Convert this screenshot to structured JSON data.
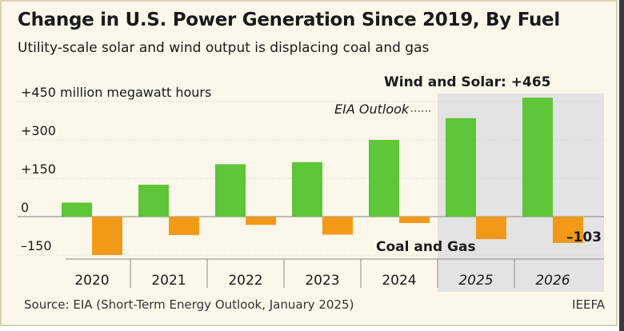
{
  "title": "Change in U.S. Power Generation Since 2019, By Fuel",
  "subtitle": "Utility-scale solar and wind output is displacing coal and gas",
  "source": "Source: EIA (Short-Term Energy Outlook, January 2025)",
  "credit": "IEEFA",
  "colors": {
    "wind_solar": "#5ec638",
    "coal_gas": "#f29a17",
    "outlook_shade": "#e3e3e3"
  },
  "chart_data": {
    "type": "bar",
    "title": "Change in U.S. Power Generation Since 2019, By Fuel",
    "ylabel": "+450 million megawatt hours",
    "categories": [
      "2020",
      "2021",
      "2022",
      "2023",
      "2024",
      "2025",
      "2026"
    ],
    "series": [
      {
        "name": "Wind and Solar",
        "values": [
          55,
          125,
          205,
          213,
          300,
          385,
          465
        ]
      },
      {
        "name": "Coal and Gas",
        "values": [
          -150,
          -72,
          -32,
          -70,
          -25,
          -88,
          -103
        ]
      }
    ],
    "yticks": [
      "+450 million megawatt hours",
      "+300",
      "+150",
      "0",
      "–150"
    ],
    "ytick_values": [
      450,
      300,
      150,
      0,
      -150
    ],
    "ylim": [
      -150,
      450
    ],
    "outlook_categories": [
      "2025",
      "2026"
    ],
    "annotations": {
      "wind_solar": "Wind and Solar:  +465",
      "coal_gas": "Coal and Gas",
      "outlook": "EIA Outlook",
      "coal_gas_2026": "–103"
    }
  }
}
